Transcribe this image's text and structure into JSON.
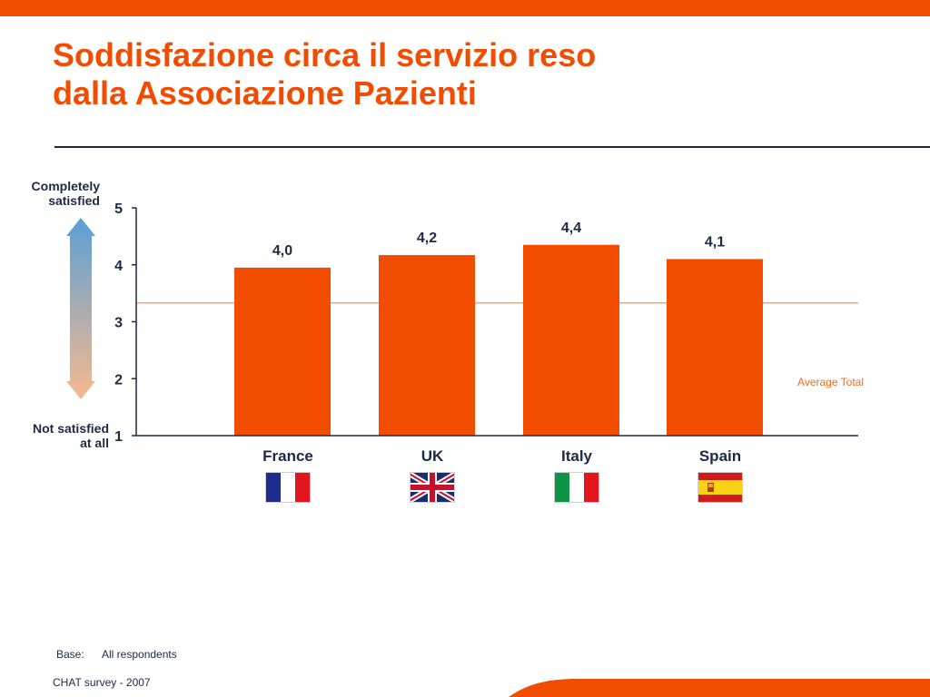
{
  "slide": {
    "title_line1": "Soddisfazione circa il servizio reso",
    "title_line2": "dalla Associazione Pazienti",
    "accent_color": "#f24c00",
    "text_color": "#1b2a45"
  },
  "scale": {
    "top_line1": "Completely",
    "top_line2": "satisfied",
    "bottom_line1": "Not satisfied",
    "bottom_line2": "at all",
    "arrow_colors": [
      "#5a9fd6",
      "#f7b98e"
    ]
  },
  "chart_data": {
    "type": "bar",
    "categories": [
      "France",
      "UK",
      "Italy",
      "Spain"
    ],
    "values": [
      3.95,
      4.17,
      4.35,
      4.1
    ],
    "data_labels": [
      "4,0",
      "4,2",
      "4,4",
      "4,1"
    ],
    "ylim": [
      1,
      5
    ],
    "yticks": [
      "1",
      "2",
      "3",
      "4",
      "5"
    ],
    "reference_line": {
      "label": "Average Total",
      "value": 3.33
    },
    "bar_color": "#f24c00",
    "grid": false
  },
  "flags": [
    {
      "country": "France",
      "icon": "france-flag-icon"
    },
    {
      "country": "UK",
      "icon": "uk-flag-icon"
    },
    {
      "country": "Italy",
      "icon": "italy-flag-icon"
    },
    {
      "country": "Spain",
      "icon": "spain-flag-icon"
    }
  ],
  "footer": {
    "base_label": "Base:",
    "base_value": "All respondents",
    "source": "CHAT survey  -  2007"
  }
}
